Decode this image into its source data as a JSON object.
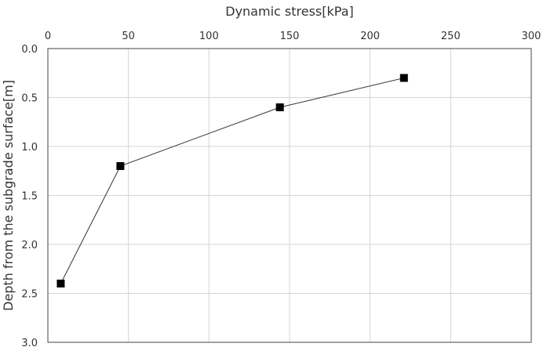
{
  "chart_data": {
    "type": "line",
    "title": "",
    "xlabel": "Dynamic stress[kPa]",
    "ylabel": "Depth from the subgrade surface[m]",
    "x_axis_position": "top",
    "y_inverted": true,
    "xlim": [
      0,
      300
    ],
    "ylim": [
      0,
      3.0
    ],
    "x_ticks": [
      0,
      50,
      100,
      150,
      200,
      250,
      300
    ],
    "y_ticks": [
      0.0,
      0.5,
      1.0,
      1.5,
      2.0,
      2.5,
      3.0
    ],
    "x_tick_labels": [
      "0",
      "50",
      "100",
      "150",
      "200",
      "250",
      "300"
    ],
    "y_tick_labels": [
      "0.0",
      "0.5",
      "1.0",
      "1.5",
      "2.0",
      "2.5",
      "3.0"
    ],
    "grid": true,
    "legend": "none",
    "series": [
      {
        "marker": "square",
        "color": "#000000",
        "points": [
          {
            "x": 221,
            "y": 0.3
          },
          {
            "x": 144,
            "y": 0.6
          },
          {
            "x": 45,
            "y": 1.2
          },
          {
            "x": 8,
            "y": 2.4
          }
        ]
      }
    ]
  }
}
